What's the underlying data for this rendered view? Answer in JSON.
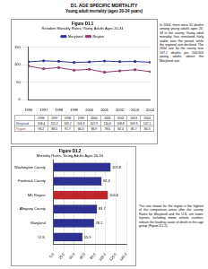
{
  "header": {
    "title": "D1. AGE SPECIFIC MORTALITY",
    "subtitle": "Young adult mortality (ages 20-34 years)"
  },
  "chart_data": [
    {
      "type": "line",
      "title": "Figure D1.1",
      "subtitle": "Resident Mortality Rates, Young Adults Ages 20-34",
      "categories": [
        "1996",
        "1997",
        "1998",
        "1999",
        "2000",
        "2001",
        "2002",
        "2003",
        "2004"
      ],
      "series": [
        {
          "name": "Maryland",
          "color": "#2e3192",
          "values": [
            108.4,
            111.2,
            109.7,
            106.3,
            107.9,
            110.6,
            108.8,
            109.3,
            107.1
          ]
        },
        {
          "name": "Region",
          "color": "#8e3a6e",
          "values": [
            96.2,
            88.5,
            91.7,
            84.3,
            86.9,
            78.6,
            82.4,
            85.7,
            80.3
          ]
        }
      ],
      "ylim": [
        0,
        150
      ],
      "yticks": [
        0,
        50,
        100,
        150
      ],
      "grid": true,
      "legend": "top",
      "marker": "square"
    },
    {
      "type": "bar",
      "orientation": "horizontal",
      "title": "Figure D1.2",
      "subtitle": "Mortality Rates, Young Adults Ages 20-34",
      "categories": [
        "Washington County",
        "Frederick County",
        "MD Region",
        "Allegany County",
        "Maryland",
        "U.S."
      ],
      "values": [
        109.8,
        92.4,
        104.6,
        83.7,
        78.2,
        55.9
      ],
      "colors": [
        "#2e3192",
        "#2e3192",
        "#c0272d",
        "#2e3192",
        "#2e3192",
        "#2e3192"
      ],
      "xlim": [
        0,
        140
      ],
      "xticks": [
        {
          "value": 0,
          "label": "0.0"
        },
        {
          "value": 20,
          "label": "20.0"
        },
        {
          "value": 40,
          "label": "40.0"
        },
        {
          "value": 60,
          "label": "60.0"
        },
        {
          "value": 80,
          "label": "80.0"
        },
        {
          "value": 100,
          "label": "100.0"
        },
        {
          "value": 120,
          "label": "120.0"
        },
        {
          "value": 140,
          "label": "140.0"
        }
      ],
      "grid": true,
      "data_labels": true
    }
  ],
  "paragraphs": [
    "In 2004, there were 31 deaths among young adults ages 20-34 in the county. Young adult mortality has remained fairly stable over the period, while the regional rate declined. The 2004 rate for the county was 107.1 deaths per 100,000 young adults, above the Maryland rate.",
    "The rate shown for the region is the highest of the comparison areas after the county. Rates for Maryland and the U.S. are lower. Injuries, including motor vehicle crashes, remain the leading cause of death in this age group (Figure D1.2)."
  ]
}
